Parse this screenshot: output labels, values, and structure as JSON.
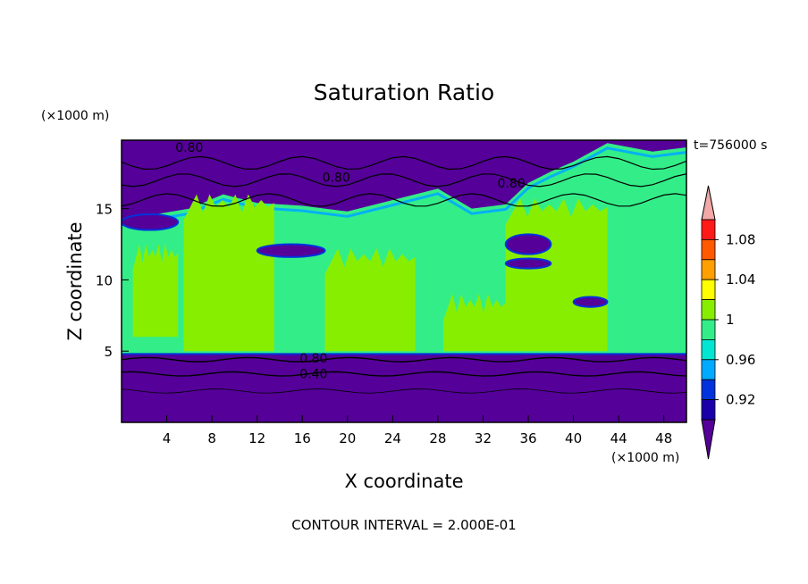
{
  "chart_data": {
    "type": "heatmap",
    "title": "Saturation Ratio",
    "xlabel": "X coordinate",
    "ylabel": "Z coordinate",
    "x_unit": "(×1000 m)",
    "y_unit": "(×1000 m)",
    "time_label": "t=756000 s",
    "footer": "CONTOUR INTERVAL = 2.000E-01",
    "xlim": [
      0,
      50
    ],
    "ylim": [
      0,
      19.8
    ],
    "x_ticks": [
      4,
      8,
      12,
      16,
      20,
      24,
      28,
      32,
      36,
      40,
      44,
      48
    ],
    "y_ticks": [
      5,
      10,
      15
    ],
    "colorbar": {
      "tick_labels": [
        "0.92",
        "0.96",
        "1",
        "1.04",
        "1.08"
      ],
      "levels": [
        0.9,
        0.92,
        0.94,
        0.96,
        0.98,
        1.0,
        1.02,
        1.04,
        1.06,
        1.08,
        1.1
      ],
      "colors": [
        "#550099",
        "#1a00a8",
        "#0033dd",
        "#00aaff",
        "#00e6d2",
        "#33ee88",
        "#88ee00",
        "#ffff00",
        "#ffa000",
        "#ff5a00",
        "#ff1a1a",
        "#f2a8a8"
      ]
    },
    "contour_labels": [
      {
        "text": "0.80",
        "x": 6.0,
        "z": 19.3
      },
      {
        "text": "0.80",
        "x": 19.0,
        "z": 17.2
      },
      {
        "text": "0.80",
        "x": 34.5,
        "z": 16.8
      },
      {
        "text": "0.80",
        "x": 17.0,
        "z": 4.5
      },
      {
        "text": "0.40",
        "x": 17.0,
        "z": 3.4
      }
    ],
    "fields": {
      "stable_layer_top": 4.8,
      "upper_dry_layer_bottom": 14.4,
      "purple_patches": [
        {
          "x0": 12,
          "x1": 18,
          "z0": 12.5,
          "z1": 11.6
        },
        {
          "x0": 34,
          "x1": 38,
          "z0": 13.2,
          "z1": 11.8
        },
        {
          "x0": 40,
          "x1": 43,
          "z0": 8.8,
          "z1": 8.1
        },
        {
          "x0": 0,
          "x1": 5,
          "z0": 14.6,
          "z1": 13.5
        },
        {
          "x0": 34,
          "x1": 38,
          "z0": 11.5,
          "z1": 10.8
        }
      ],
      "lime_regions": [
        {
          "x0": 5.5,
          "x1": 13.5,
          "z0": 5,
          "z1": 16.3
        },
        {
          "x0": 18,
          "x1": 26,
          "z0": 5,
          "z1": 12.5
        },
        {
          "x0": 28.5,
          "x1": 34,
          "z0": 5,
          "z1": 9.3
        },
        {
          "x0": 34,
          "x1": 43,
          "z0": 5,
          "z1": 16.0
        },
        {
          "x0": 1,
          "x1": 5,
          "z0": 6,
          "z1": 12.8
        }
      ]
    }
  }
}
